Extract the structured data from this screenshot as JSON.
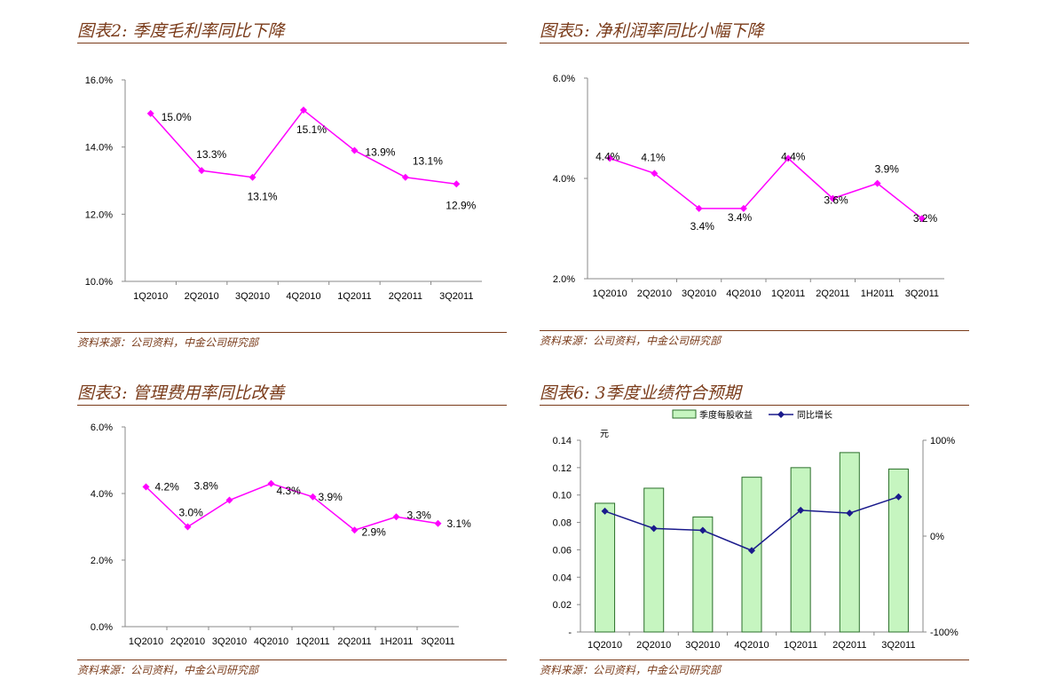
{
  "chart_data": [
    {
      "id": "c1",
      "type": "line",
      "title": "图表2: 季度毛利率同比下降",
      "source": "资料来源：公司资料，中金公司研究部",
      "categories": [
        "1Q2010",
        "2Q2010",
        "3Q2010",
        "4Q2010",
        "1Q2011",
        "2Q2011",
        "3Q2011"
      ],
      "ylim": [
        10.0,
        16.0
      ],
      "yticks": [
        "10.0%",
        "12.0%",
        "14.0%",
        "16.0%"
      ],
      "series": [
        {
          "values": [
            15.0,
            13.3,
            13.1,
            15.1,
            13.9,
            13.1,
            12.9
          ],
          "labels": [
            "15.0%",
            "13.3%",
            "13.1%",
            "15.1%",
            "13.9%",
            "13.1%",
            "12.9%"
          ],
          "color": "#ff00ff"
        }
      ],
      "grid": false
    },
    {
      "id": "c2",
      "type": "line",
      "title": "图表5: 净利润率同比小幅下降",
      "source": "资料来源：公司资料，中金公司研究部",
      "categories": [
        "1Q2010",
        "2Q2010",
        "3Q2010",
        "4Q2010",
        "1Q2011",
        "2Q2011",
        "1H2011",
        "3Q2011"
      ],
      "ylim": [
        2.0,
        6.0
      ],
      "yticks": [
        "2.0%",
        "4.0%",
        "6.0%"
      ],
      "series": [
        {
          "values": [
            4.4,
            4.1,
            3.4,
            3.4,
            4.4,
            3.6,
            3.9,
            3.2
          ],
          "labels": [
            "4.4%",
            "4.1%",
            "3.4%",
            "3.4%",
            "4.4%",
            "3.6%",
            "3.9%",
            "3.2%"
          ],
          "color": "#ff00ff"
        }
      ],
      "grid": false
    },
    {
      "id": "c3",
      "type": "line",
      "title": "图表3: 管理费用率同比改善",
      "source": "资料来源：公司资料，中金公司研究部",
      "categories": [
        "1Q2010",
        "2Q2010",
        "3Q2010",
        "4Q2010",
        "1Q2011",
        "2Q2011",
        "1H2011",
        "3Q2011"
      ],
      "ylim": [
        0.0,
        6.0
      ],
      "yticks": [
        "0.0%",
        "2.0%",
        "4.0%",
        "6.0%"
      ],
      "series": [
        {
          "values": [
            4.2,
            3.0,
            3.8,
            4.3,
            3.9,
            2.9,
            3.3,
            3.1
          ],
          "labels": [
            "4.2%",
            "3.0%",
            "3.8%",
            "4.3%",
            "3.9%",
            "2.9%",
            "3.3%",
            "3.1%"
          ],
          "color": "#ff00ff"
        }
      ],
      "grid": false
    },
    {
      "id": "c4",
      "type": "bar",
      "title": "图表6: 3季度业绩符合预期",
      "source": "资料来源：公司资料，中金公司研究部",
      "categories": [
        "1Q2010",
        "2Q2010",
        "3Q2010",
        "4Q2010",
        "1Q2011",
        "2Q2011",
        "3Q2011"
      ],
      "ylabel": "元",
      "ylim": [
        0,
        0.14
      ],
      "yticks": [
        "-",
        "0.02",
        "0.04",
        "0.06",
        "0.08",
        "0.10",
        "0.12",
        "0.14"
      ],
      "y2lim": [
        -100,
        100
      ],
      "y2ticks": [
        "-100%",
        "0%",
        "100%"
      ],
      "series": [
        {
          "name": "季度每股收益",
          "type": "bar",
          "values": [
            0.094,
            0.105,
            0.084,
            0.113,
            0.12,
            0.131,
            0.119
          ],
          "color": "#c6f5c0",
          "border": "#2a6e2a"
        },
        {
          "name": "同比增长",
          "type": "line",
          "axis": "right",
          "values": [
            26,
            8,
            6,
            -15,
            27,
            24,
            41
          ],
          "color": "#1a1a8c"
        }
      ],
      "legend": "top",
      "grid": false
    }
  ]
}
